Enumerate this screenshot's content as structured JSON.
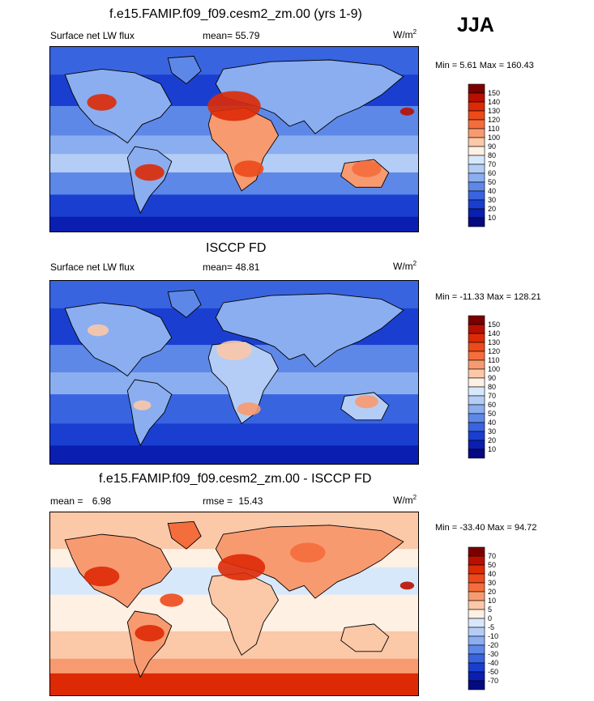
{
  "season": "JJA",
  "panels": [
    {
      "title": "f.e15.FAMIP.f09_f09.cesm2_zm.00 (yrs 1-9)",
      "left_label": "Surface net LW flux",
      "stat_label": "mean=",
      "stat_value": "55.79",
      "stat2_label": "",
      "stat2_value": "",
      "units": "W/m",
      "units_sup": "2",
      "minmax": "Min =   5.61 Max = 160.43",
      "colorbar_labels": [
        "150",
        "140",
        "130",
        "120",
        "110",
        "100",
        "90",
        "80",
        "70",
        "60",
        "50",
        "40",
        "30",
        "20",
        "10"
      ],
      "colors": [
        "#7a0000",
        "#b81000",
        "#dd2a05",
        "#ec4a1a",
        "#f46d3c",
        "#f89a70",
        "#fbc8a8",
        "#fff0e4",
        "#d8e8fb",
        "#b4cdf6",
        "#8aaef0",
        "#5e88e8",
        "#3964e0",
        "#1a3fd0",
        "#0a1fb0",
        "#050a82"
      ],
      "chart_data": {
        "type": "heatmap",
        "title": "f.e15.FAMIP.f09_f09.cesm2_zm.00 (yrs 1-9)",
        "variable": "Surface net LW flux",
        "mean": 55.79,
        "min": 5.61,
        "max": 160.43,
        "levels": [
          10,
          20,
          30,
          40,
          50,
          60,
          70,
          80,
          90,
          100,
          110,
          120,
          130,
          140,
          150
        ]
      }
    },
    {
      "title": "ISCCP FD",
      "left_label": "Surface net LW flux",
      "stat_label": "mean=",
      "stat_value": "48.81",
      "stat2_label": "",
      "stat2_value": "",
      "units": "W/m",
      "units_sup": "2",
      "minmax": "Min = -11.33 Max = 128.21",
      "colorbar_labels": [
        "150",
        "140",
        "130",
        "120",
        "110",
        "100",
        "90",
        "80",
        "70",
        "60",
        "50",
        "40",
        "30",
        "20",
        "10"
      ],
      "colors": [
        "#7a0000",
        "#b81000",
        "#dd2a05",
        "#ec4a1a",
        "#f46d3c",
        "#f89a70",
        "#fbc8a8",
        "#fff0e4",
        "#d8e8fb",
        "#b4cdf6",
        "#8aaef0",
        "#5e88e8",
        "#3964e0",
        "#1a3fd0",
        "#0a1fb0",
        "#050a82"
      ],
      "chart_data": {
        "type": "heatmap",
        "title": "ISCCP FD",
        "variable": "Surface net LW flux",
        "mean": 48.81,
        "min": -11.33,
        "max": 128.21,
        "levels": [
          10,
          20,
          30,
          40,
          50,
          60,
          70,
          80,
          90,
          100,
          110,
          120,
          130,
          140,
          150
        ]
      }
    },
    {
      "title": "f.e15.FAMIP.f09_f09.cesm2_zm.00 - ISCCP FD",
      "left_label": "mean =",
      "stat_label": "",
      "stat_value": "6.98",
      "stat2_label": "rmse =",
      "stat2_value": "15.43",
      "units": "W/m",
      "units_sup": "2",
      "minmax": "Min = -33.40 Max =  94.72",
      "colorbar_labels": [
        "70",
        "50",
        "40",
        "30",
        "20",
        "10",
        "5",
        "0",
        "-5",
        "-10",
        "-20",
        "-30",
        "-40",
        "-50",
        "-70"
      ],
      "colors": [
        "#7a0000",
        "#b81000",
        "#dd2a05",
        "#ec4a1a",
        "#f46d3c",
        "#f89a70",
        "#fbc8a8",
        "#fff0e4",
        "#d8e8fb",
        "#b4cdf6",
        "#8aaef0",
        "#5e88e8",
        "#3964e0",
        "#1a3fd0",
        "#0a1fb0",
        "#050a82"
      ],
      "chart_data": {
        "type": "heatmap",
        "title": "f.e15.FAMIP.f09_f09.cesm2_zm.00 - ISCCP FD",
        "mean": 6.98,
        "rmse": 15.43,
        "min": -33.4,
        "max": 94.72,
        "levels": [
          -70,
          -50,
          -40,
          -30,
          -20,
          -10,
          -5,
          0,
          5,
          10,
          20,
          30,
          40,
          50,
          70
        ]
      }
    }
  ]
}
